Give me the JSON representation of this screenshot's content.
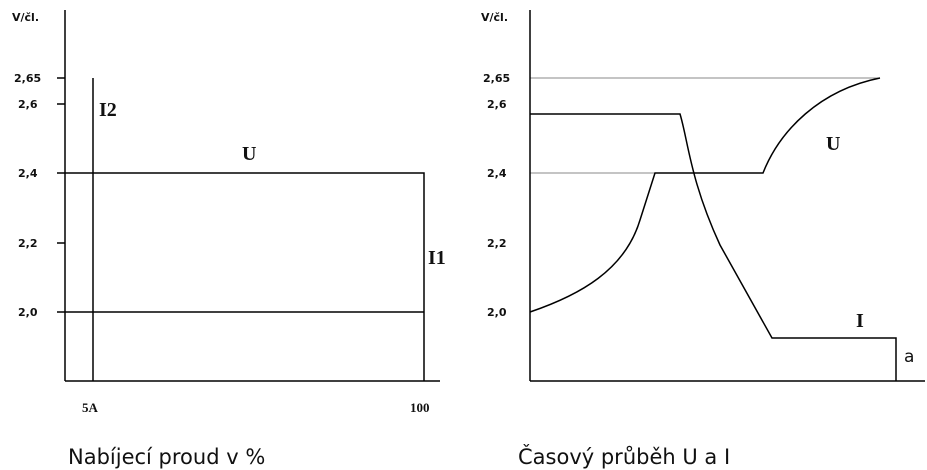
{
  "left": {
    "y_axis_label": "V/čl.",
    "y_ticks": [
      "2,65",
      "2,6",
      "2,4",
      "2,2",
      "2,0"
    ],
    "x_ticks": [
      "5A",
      "100"
    ],
    "curve_labels": [
      "I2",
      "U",
      "I1"
    ],
    "caption": "Nabíjecí proud v %"
  },
  "right": {
    "y_axis_label": "V/čl.",
    "y_ticks": [
      "2,65",
      "2,6",
      "2,4",
      "2,2",
      "2,0"
    ],
    "curve_labels": [
      "U",
      "I",
      "a"
    ],
    "caption": "Časový průběh U a I"
  }
}
